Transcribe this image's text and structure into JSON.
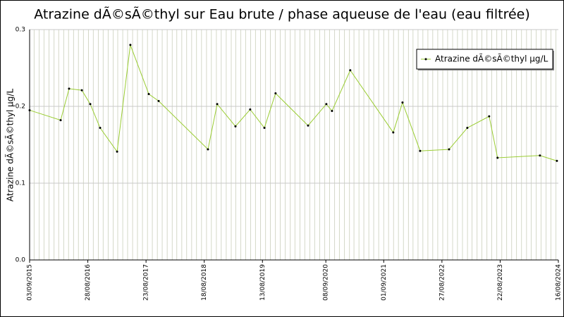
{
  "chart_data": {
    "type": "line",
    "title": "Atrazine dÃ©sÃ©thyl sur Eau brute / phase aqueuse de l'eau (eau filtrée)",
    "y_label": "Atrazine dÃ©sÃ©thyl µg/L",
    "x": [
      "2015-09-03",
      "2016-03-13",
      "2016-05-04",
      "2016-07-22",
      "2016-09-12",
      "2016-11-12",
      "2017-02-25",
      "2017-05-18",
      "2017-09-09",
      "2017-11-09",
      "2018-09-10",
      "2018-11-06",
      "2019-02-27",
      "2019-05-29",
      "2019-08-25",
      "2019-11-02",
      "2020-05-21",
      "2020-09-11",
      "2020-10-16",
      "2021-02-06",
      "2021-10-30",
      "2021-12-26",
      "2022-04-14",
      "2022-10-10",
      "2023-01-31",
      "2023-06-15",
      "2023-08-06",
      "2024-04-24",
      "2024-08-07"
    ],
    "series": [
      {
        "name": "Atrazine dÃ©sÃ©thyl µg/L",
        "color": "#9acd32",
        "marker_color": "#000000",
        "values": [
          0.195,
          0.182,
          0.223,
          0.221,
          0.203,
          0.172,
          0.141,
          0.28,
          0.216,
          0.207,
          0.144,
          0.203,
          0.174,
          0.196,
          0.172,
          0.217,
          0.175,
          0.203,
          0.194,
          0.247,
          0.166,
          0.205,
          0.142,
          0.144,
          0.172,
          0.187,
          0.133,
          0.136,
          0.129
        ]
      }
    ],
    "xlim": [
      "2015-09-03",
      "2024-08-16"
    ],
    "xticks": [
      {
        "value": "2015-09-03",
        "label": "03/09/2015"
      },
      {
        "value": "2016-08-28",
        "label": "28/08/2016"
      },
      {
        "value": "2017-08-23",
        "label": "23/08/2017"
      },
      {
        "value": "2018-08-18",
        "label": "18/08/2018"
      },
      {
        "value": "2019-08-13",
        "label": "13/08/2019"
      },
      {
        "value": "2020-09-08",
        "label": "08/09/2020"
      },
      {
        "value": "2021-09-01",
        "label": "01/09/2021"
      },
      {
        "value": "2022-08-27",
        "label": "27/08/2022"
      },
      {
        "value": "2023-08-22",
        "label": "22/08/2023"
      },
      {
        "value": "2024-08-16",
        "label": "16/08/2024"
      }
    ],
    "ylim": [
      0,
      0.3
    ],
    "yticks": [
      {
        "value": 0,
        "label": "0.0"
      },
      0.1,
      0.2,
      0.3
    ],
    "grid": true,
    "legend": "top-right"
  }
}
